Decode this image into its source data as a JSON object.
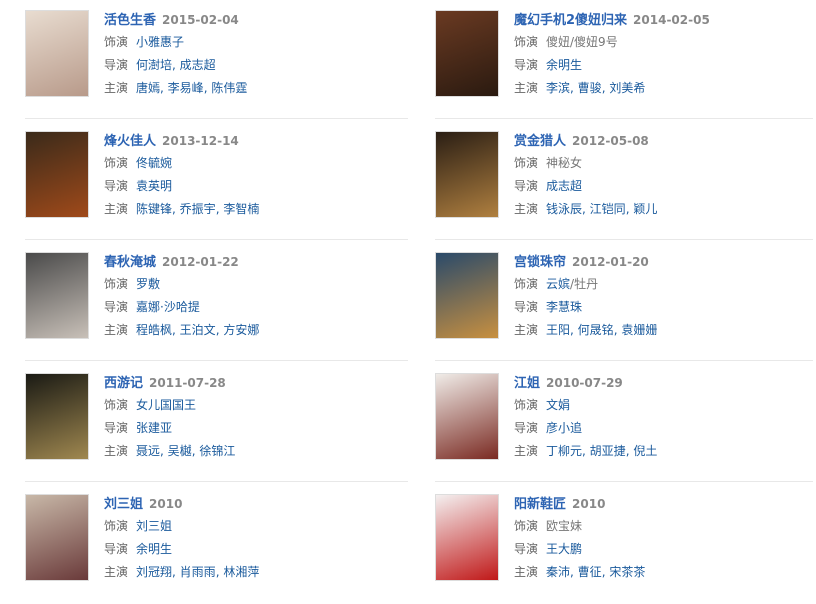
{
  "labels": {
    "role": "饰演",
    "director": "导演",
    "cast": "主演"
  },
  "items": [
    {
      "title": "活色生香",
      "date": "2015-02-04",
      "role": [
        {
          "text": "小雅惠子",
          "linked": true
        }
      ],
      "director": [
        "何澍培",
        "成志超"
      ],
      "cast": [
        "唐嫣",
        "李易峰",
        "陈伟霆"
      ],
      "poster_colors": [
        "#e8dcd0",
        "#b89a8a"
      ]
    },
    {
      "title": "魔幻手机2傻妞归来",
      "date": "2014-02-05",
      "role": [
        {
          "text": "傻妞/傻妞9号",
          "linked": false
        }
      ],
      "director": [
        "余明生"
      ],
      "cast": [
        "李滨",
        "曹骏",
        "刘美希"
      ],
      "poster_colors": [
        "#6a3a22",
        "#2a1a10"
      ]
    },
    {
      "title": "烽火佳人",
      "date": "2013-12-14",
      "role": [
        {
          "text": "佟毓婉",
          "linked": true
        }
      ],
      "director": [
        "袁英明"
      ],
      "cast": [
        "陈键锋",
        "乔振宇",
        "李智楠"
      ],
      "poster_colors": [
        "#3a2a1a",
        "#a04a1a"
      ]
    },
    {
      "title": "赏金猎人",
      "date": "2012-05-08",
      "role": [
        {
          "text": "神秘女",
          "linked": false
        }
      ],
      "director": [
        "成志超"
      ],
      "cast": [
        "钱泳辰",
        "江铠同",
        "颖儿"
      ],
      "poster_colors": [
        "#2a1e14",
        "#b08040"
      ]
    },
    {
      "title": "春秋淹城",
      "date": "2012-01-22",
      "role": [
        {
          "text": "罗敷",
          "linked": true
        }
      ],
      "director": [
        "嘉娜·沙哈提"
      ],
      "cast": [
        "程皓枫",
        "王泊文",
        "方安娜"
      ],
      "poster_colors": [
        "#4a4a4a",
        "#c8c0b8"
      ]
    },
    {
      "title": "宫锁珠帘",
      "date": "2012-01-20",
      "role": [
        {
          "text": "云嫔",
          "linked": true
        },
        {
          "text": "/牡丹",
          "linked": false
        }
      ],
      "director": [
        "李慧珠"
      ],
      "cast": [
        "王阳",
        "何晟铭",
        "袁姗姗"
      ],
      "poster_colors": [
        "#2a4a6a",
        "#c89040"
      ]
    },
    {
      "title": "西游记",
      "date": "2011-07-28",
      "role": [
        {
          "text": "女儿国国王",
          "linked": true
        }
      ],
      "director": [
        "张建亚"
      ],
      "cast": [
        "聂远",
        "吴樾",
        "徐锦江"
      ],
      "poster_colors": [
        "#1a1a14",
        "#a08850"
      ]
    },
    {
      "title": "江姐",
      "date": "2010-07-29",
      "role": [
        {
          "text": "文娟",
          "linked": true
        }
      ],
      "director": [
        "彦小追"
      ],
      "cast": [
        "丁柳元",
        "胡亚捷",
        "倪土"
      ],
      "poster_colors": [
        "#f0ece8",
        "#7a2a22"
      ]
    },
    {
      "title": "刘三姐",
      "date": "2010",
      "role": [
        {
          "text": "刘三姐",
          "linked": true
        }
      ],
      "director": [
        "余明生"
      ],
      "cast": [
        "刘冠翔",
        "肖雨雨",
        "林湘萍"
      ],
      "poster_colors": [
        "#c8b8a8",
        "#6a3a3a"
      ]
    },
    {
      "title": "阳新鞋匠",
      "date": "2010",
      "role": [
        {
          "text": "欧宝妹",
          "linked": false
        }
      ],
      "director": [
        "王大鹏"
      ],
      "cast": [
        "秦沛",
        "曹征",
        "宋茶茶"
      ],
      "poster_colors": [
        "#f4f0f0",
        "#c01818"
      ]
    }
  ]
}
